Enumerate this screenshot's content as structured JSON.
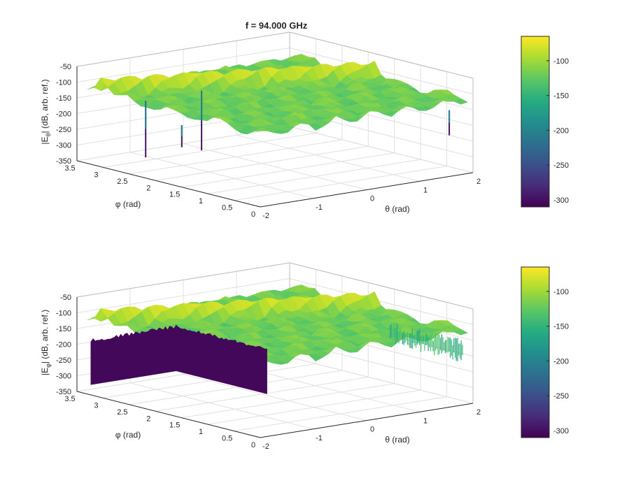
{
  "figure": {
    "title": "f = 94.000 GHz",
    "colors": {
      "viridis": [
        "#440154",
        "#472c7a",
        "#3b518b",
        "#2c718e",
        "#21908d",
        "#27ad81",
        "#5cc863",
        "#aadc32",
        "#fde725"
      ],
      "grid": "#e0e0e0",
      "axis": "#262626"
    }
  },
  "chart_data": [
    {
      "type": "surface",
      "title": "f = 94.000 GHz",
      "xlabel": "θ (rad)",
      "ylabel": "φ (rad)",
      "zlabel_main": "|E",
      "zlabel_sub": "θ",
      "zlabel_rest": "| (dB, arb. ref.)",
      "xlim": [
        -2,
        2
      ],
      "ylim": [
        0,
        3.5
      ],
      "zlim": [
        -350,
        -50
      ],
      "x_ticks": [
        "-2",
        "-1",
        "0",
        "1",
        "2"
      ],
      "y_ticks": [
        "0",
        "0.5",
        "1",
        "1.5",
        "2",
        "2.5",
        "3",
        "3.5"
      ],
      "z_ticks": [
        "-350",
        "-300",
        "-250",
        "-200",
        "-150",
        "-100",
        "-50"
      ],
      "colorbar": {
        "ticks": [
          "-100",
          "-150",
          "-200",
          "-250",
          "-300"
        ],
        "range": [
          -310,
          -65
        ]
      },
      "surface": {
        "base_level": -120,
        "peak_level": -70,
        "peak_phi": 3.1,
        "noise_floor": -170
      },
      "deep_nulls": [
        {
          "theta": -1.2,
          "phi": 3.0,
          "z": -340
        },
        {
          "theta": -0.1,
          "phi": 3.05,
          "z": -350
        },
        {
          "theta": -1.9,
          "phi": 1.6,
          "z": -230
        },
        {
          "theta": 1.85,
          "phi": 0.3,
          "z": -240
        }
      ]
    },
    {
      "type": "surface",
      "title": "",
      "xlabel": "θ (rad)",
      "ylabel": "φ (rad)",
      "zlabel_main": "|E",
      "zlabel_sub": "φ",
      "zlabel_rest": "| (dB, arb. ref.)",
      "xlim": [
        -2,
        2
      ],
      "ylim": [
        0,
        3.5
      ],
      "zlim": [
        -350,
        -50
      ],
      "x_ticks": [
        "-2",
        "-1",
        "0",
        "1",
        "2"
      ],
      "y_ticks": [
        "0",
        "0.5",
        "1",
        "1.5",
        "2",
        "2.5",
        "3",
        "3.5"
      ],
      "z_ticks": [
        "-350",
        "-300",
        "-250",
        "-200",
        "-150",
        "-100",
        "-50"
      ],
      "colorbar": {
        "ticks": [
          "-100",
          "-150",
          "-200",
          "-250",
          "-300"
        ],
        "range": [
          -310,
          -65
        ]
      },
      "surface": {
        "base_level": -120,
        "peak_level": -70,
        "peak_phi": 3.1,
        "noise_floor": -320
      },
      "deep_nulls": []
    }
  ]
}
